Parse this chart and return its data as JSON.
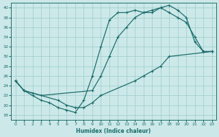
{
  "xlabel": "Humidex (Indice chaleur)",
  "xlim": [
    -0.5,
    23.5
  ],
  "ylim": [
    17,
    41
  ],
  "yticks": [
    18,
    20,
    22,
    24,
    26,
    28,
    30,
    32,
    34,
    36,
    38,
    40
  ],
  "xticks": [
    0,
    1,
    2,
    3,
    4,
    5,
    6,
    7,
    8,
    9,
    10,
    11,
    12,
    13,
    14,
    15,
    16,
    17,
    18,
    19,
    20,
    21,
    22,
    23
  ],
  "bg_color": "#cce8e8",
  "grid_color": "#99cccc",
  "line_color": "#1a6b6b",
  "line1_x": [
    0,
    1,
    2,
    3,
    4,
    5,
    6,
    7,
    8,
    9,
    10,
    11,
    12,
    13,
    14,
    15,
    16,
    17,
    18,
    19,
    20,
    21,
    22,
    23
  ],
  "line1_y": [
    25,
    23,
    22,
    21,
    20.5,
    19.5,
    19,
    18.5,
    21,
    26,
    32,
    37.5,
    39,
    39,
    39.5,
    39,
    39.5,
    40,
    40.5,
    39.5,
    38,
    33,
    31,
    31
  ],
  "line2_x": [
    0,
    1,
    2,
    3,
    9,
    10,
    11,
    12,
    13,
    14,
    15,
    16,
    17,
    18,
    19,
    20,
    21,
    22,
    23
  ],
  "line2_y": [
    25,
    23,
    22.5,
    22,
    23,
    26,
    30,
    34,
    36,
    38,
    39,
    39,
    40,
    39,
    38,
    37,
    34,
    31,
    31
  ],
  "line3_x": [
    0,
    1,
    5,
    6,
    7,
    8,
    9,
    10,
    14,
    15,
    16,
    17,
    18,
    23
  ],
  "line3_y": [
    25,
    23,
    21,
    20,
    19.5,
    19.5,
    20.5,
    22,
    25,
    26,
    27,
    28,
    30,
    31
  ]
}
